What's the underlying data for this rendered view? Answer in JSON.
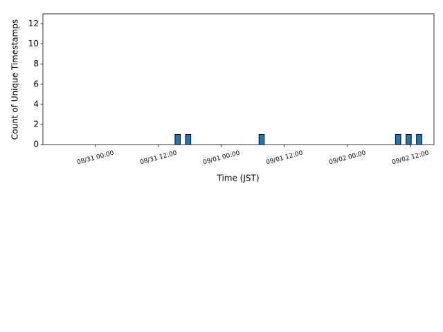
{
  "chart_data": {
    "type": "histogram",
    "xlabel": "Time (JST)",
    "ylabel": "Count of Unique Timestamps",
    "bins": [
      "08/31 15:10",
      "08/31 16:10",
      "08/31 17:10",
      "08/31 18:10",
      "08/31 19:10",
      "08/31 20:10",
      "08/31 21:10",
      "08/31 22:10",
      "08/31 23:10",
      "09/01 00:10",
      "09/01 01:10",
      "09/01 02:10",
      "09/01 03:10",
      "09/01 04:10",
      "09/01 05:10",
      "09/01 06:10",
      "09/01 07:10",
      "09/01 08:10",
      "09/01 09:10",
      "09/01 10:10",
      "09/01 11:10",
      "09/01 12:10",
      "09/01 13:10",
      "09/01 14:10",
      "09/01 15:10",
      "09/01 16:10",
      "09/01 17:10",
      "09/01 18:10",
      "09/01 19:10",
      "09/01 20:10",
      "09/01 21:10",
      "09/01 22:10",
      "09/01 23:10",
      "09/02 00:10",
      "09/02 01:10",
      "09/02 02:10",
      "09/02 03:10",
      "09/02 04:10",
      "09/02 05:10",
      "09/02 06:10",
      "09/02 07:10",
      "09/02 08:10",
      "09/02 09:10",
      "09/02 10:10",
      "09/02 11:10",
      "09/02 12:10",
      "09/02 13:10",
      "09/02 14:10"
    ],
    "counts": [
      1,
      0,
      1,
      0,
      0,
      0,
      0,
      0,
      0,
      0,
      0,
      0,
      0,
      0,
      0,
      0,
      1,
      0,
      0,
      0,
      0,
      0,
      0,
      0,
      0,
      0,
      0,
      0,
      0,
      0,
      0,
      0,
      0,
      0,
      0,
      0,
      0,
      0,
      0,
      0,
      0,
      0,
      1,
      0,
      1,
      0,
      1
    ],
    "color": "#1f77b4",
    "edgecolor": "#000000",
    "xlim": [
      "08/30 14:00",
      "09/02 16:30"
    ],
    "xticks": [
      "08/31 00:00",
      "08/31 12:00",
      "09/01 00:00",
      "09/01 12:00",
      "09/02 00:00",
      "09/02 12:00"
    ],
    "ylim": [
      0,
      13
    ],
    "yticks": [
      0,
      2,
      4,
      6,
      8,
      10,
      12
    ]
  }
}
